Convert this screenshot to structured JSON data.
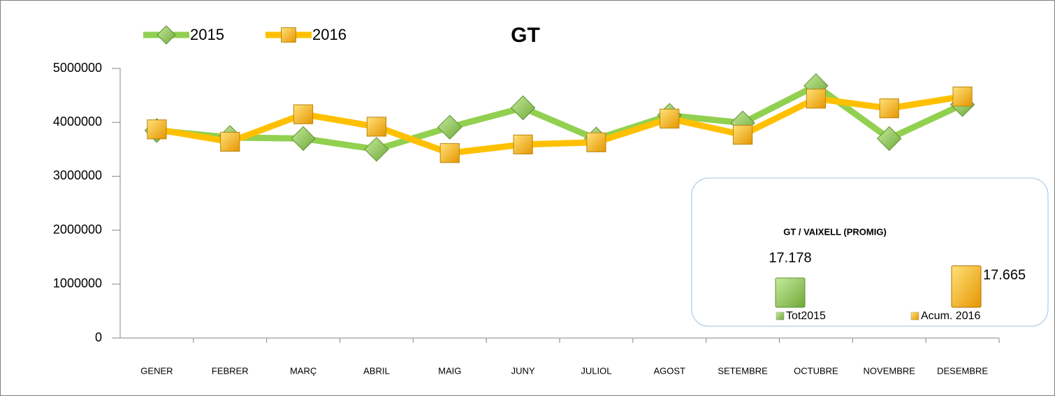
{
  "chart_data": [
    {
      "type": "line",
      "title": "GT",
      "categories": [
        "GENER",
        "FEBRER",
        "MARÇ",
        "ABRIL",
        "MAIG",
        "JUNY",
        "JULIOL",
        "AGOST",
        "SETEMBRE",
        "OCTUBRE",
        "NOVEMBRE",
        "DESEMBRE"
      ],
      "series": [
        {
          "name": "2015",
          "color": "#92d050",
          "marker": "diamond",
          "values": [
            3850000,
            3720000,
            3700000,
            3500000,
            3910000,
            4270000,
            3690000,
            4130000,
            3990000,
            4680000,
            3700000,
            4330000
          ]
        },
        {
          "name": "2016",
          "color": "#ffc000",
          "marker": "square",
          "values": [
            3870000,
            3640000,
            4150000,
            3920000,
            3430000,
            3590000,
            3630000,
            4070000,
            3770000,
            4440000,
            4260000,
            4480000
          ]
        }
      ],
      "ylim": [
        0,
        5000000
      ],
      "yticks": [
        0,
        1000000,
        2000000,
        3000000,
        4000000,
        5000000
      ],
      "legend": "top-left"
    },
    {
      "type": "bar",
      "title": "GT / VAIXELL (PROMIG)",
      "categories": [
        "Tot2015",
        "Acum. 2016"
      ],
      "values": [
        17.178,
        17.665
      ],
      "colors": [
        "#92d050",
        "#ffa500"
      ],
      "ylim": [
        16,
        17.7
      ],
      "legend": "bottom"
    }
  ]
}
